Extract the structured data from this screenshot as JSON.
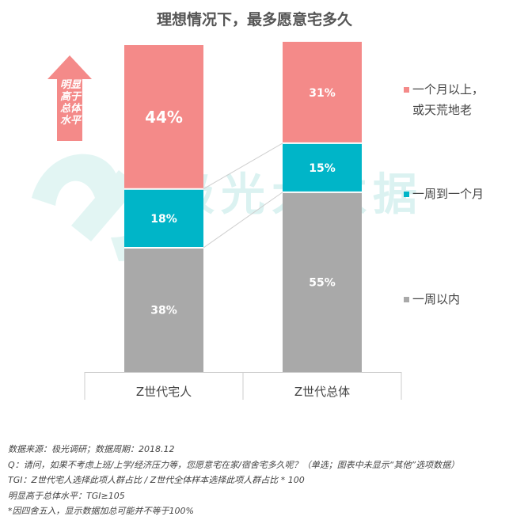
{
  "colors": {
    "over_month": "#f48a89",
    "one_week_to_month": "#00b5c8",
    "within_week": "#a9a9a9",
    "callout": "#f48a89",
    "watermark": "#bfe9e6",
    "axis": "#cccccc"
  },
  "chart_data": {
    "type": "bar",
    "stacked": true,
    "title": "理想情况下，最多愿意宅多久",
    "categories": [
      "Z世代宅人",
      "Z世代总体"
    ],
    "series": [
      {
        "name": "一周以内",
        "values": [
          38,
          55
        ],
        "labels": [
          "38%",
          "55%"
        ],
        "color": "#a9a9a9"
      },
      {
        "name": "一周到一个月",
        "values": [
          18,
          15
        ],
        "labels": [
          "18%",
          "15%"
        ],
        "color": "#00b5c8"
      },
      {
        "name": "一个月以上，或天荒地老",
        "values": [
          44,
          31
        ],
        "labels": [
          "44%",
          "31%"
        ],
        "color": "#f48a89"
      }
    ],
    "ylim": [
      0,
      100
    ],
    "legend_position": "right",
    "legend": [
      {
        "line1": "一个月以上，",
        "line2": "或天荒地老",
        "color": "#f48a89"
      },
      {
        "line1": "一周到一个月",
        "line2": "",
        "color": "#00b5c8"
      },
      {
        "line1": "一周以内",
        "line2": "",
        "color": "#a9a9a9"
      }
    ],
    "callout": {
      "lines": [
        "明显",
        "高于",
        "总体",
        "水平"
      ]
    },
    "watermark": "极光大数据"
  },
  "notes": [
    "数据来源：极光调研；数据周期：2018.12",
    "Q：请问，如果不考虑上班/上学/经济压力等，您愿意宅在家/宿舍宅多久呢？（单选；图表中未显示“其他”选项数据）",
    "TGI：Z世代宅人选择此项人群占比 / Z世代全体样本选择此项人群占比 * 100",
    "明显高于总体水平：TGI≥105",
    "*因四舍五入，显示数据加总可能并不等于100%"
  ]
}
